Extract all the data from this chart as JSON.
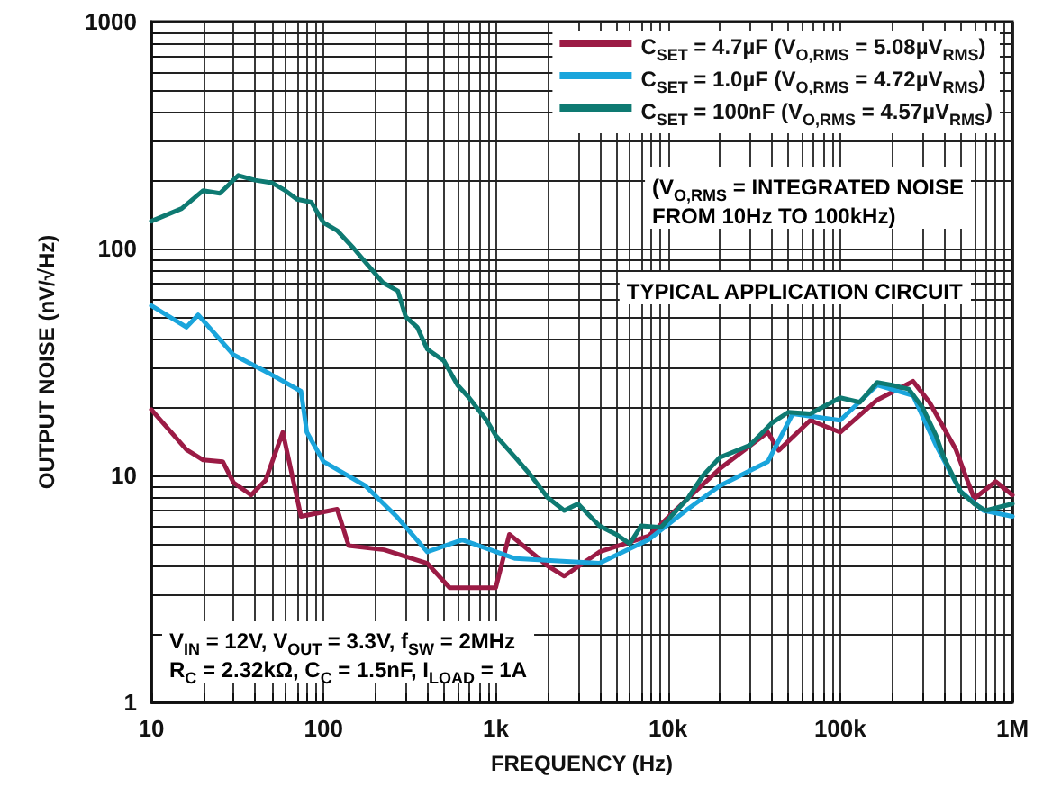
{
  "chart_data": {
    "type": "line",
    "xlabel": "FREQUENCY (Hz)",
    "ylabel": "OUTPUT NOISE (nV/√Hz)",
    "log": "xy",
    "grid": true,
    "legend": "top right",
    "line_style": "solid",
    "marker": "none",
    "xlim": [
      10,
      1000000
    ],
    "ylim": [
      1,
      1000
    ],
    "xticks": [
      10,
      100,
      {
        "value": 1000,
        "label": "1k"
      },
      {
        "value": 10000,
        "label": "10k"
      },
      {
        "value": 100000,
        "label": "100k"
      },
      {
        "value": 1000000,
        "label": "1M"
      }
    ],
    "yticks": [
      1,
      10,
      100,
      1000
    ],
    "annotations": [
      "(V$_{O,RMS}$ = INTEGRATED NOISE\nFROM 10Hz TO 100kHz)",
      "TYPICAL APPLICATION CIRCUIT",
      "V$_{IN}$ = 12V, V$_{OUT}$ = 3.3V, f$_{SW}$ = 2MHz\nR$_{C}$ = 2.32kΩ, C$_{C}$ = 1.5nF, I$_{LOAD}$ = 1A"
    ],
    "series": [
      {
        "name": "C$_{SET}$ = 4.7µF (V$_{O,RMS}$ = 5.08µV$_{RMS}$)",
        "color": "#9b1b45",
        "x": [
          10,
          16,
          20,
          26,
          30,
          38,
          46,
          58,
          74,
          120,
          140,
          225,
          400,
          540,
          1000,
          1200,
          2000,
          2500,
          4000,
          7700,
          13000,
          20000,
          38000,
          44000,
          67000,
          100000,
          164000,
          265000,
          330000,
          470000,
          600000,
          800000,
          1000000
        ],
        "values": [
          19.5,
          13,
          11.7,
          11.5,
          9.3,
          8.2,
          9.5,
          15.5,
          6.6,
          7.1,
          4.9,
          4.7,
          4.1,
          3.2,
          3.2,
          5.5,
          4,
          3.6,
          4.6,
          5.4,
          7.9,
          10.7,
          15.5,
          12.9,
          17.5,
          15.5,
          21.5,
          26,
          21,
          13,
          7.9,
          9.4,
          8.2
        ]
      },
      {
        "name": "C$_{SET}$ = 1.0µF (V$_{O,RMS}$ = 4.72µV$_{RMS}$)",
        "color": "#1aa5dc",
        "x": [
          10,
          16,
          18.7,
          30,
          49,
          74,
          80,
          100,
          175,
          265,
          400,
          640,
          1300,
          2300,
          4000,
          7700,
          13000,
          20000,
          38000,
          53000,
          100000,
          164000,
          265000,
          360000,
          500000,
          680000,
          1000000
        ],
        "values": [
          56,
          45,
          51,
          34,
          28,
          23.5,
          15.5,
          11.5,
          9,
          6.6,
          4.6,
          5.2,
          4.3,
          4.2,
          4.1,
          5.2,
          7.1,
          9,
          11.5,
          18.7,
          17.5,
          25,
          22.5,
          13.6,
          8.5,
          7,
          6.6
        ]
      },
      {
        "name": "C$_{SET}$ = 100nF (V$_{O,RMS}$ = 4.57µV$_{RMS}$)",
        "color": "#0e7a72",
        "x": [
          10,
          15,
          20,
          25,
          32,
          40,
          50,
          60,
          70,
          85,
          100,
          120,
          150,
          180,
          220,
          270,
          300,
          350,
          400,
          500,
          600,
          700,
          880,
          1000,
          1300,
          1600,
          2000,
          2500,
          3000,
          4000,
          5000,
          6000,
          7000,
          9100,
          13000,
          16000,
          20000,
          30000,
          40000,
          50000,
          67000,
          100000,
          130000,
          164000,
          200000,
          250000,
          300000,
          360000,
          400000,
          500000,
          600000,
          700000,
          1000000
        ],
        "values": [
          132,
          150,
          180,
          175,
          210,
          200,
          195,
          180,
          165,
          160,
          130,
          120,
          100,
          85,
          71,
          65,
          50,
          45,
          36,
          32,
          25,
          22,
          17.6,
          15,
          12,
          10,
          8,
          7,
          7.5,
          6,
          5.5,
          5,
          6,
          5.9,
          7.9,
          10,
          12,
          13.6,
          17,
          19,
          18.7,
          22,
          21,
          25.7,
          25,
          24,
          20,
          15,
          12,
          8.5,
          7.5,
          7,
          7.5
        ]
      }
    ]
  }
}
